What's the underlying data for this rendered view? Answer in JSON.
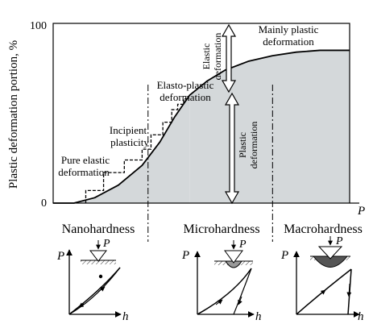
{
  "chart_data": {
    "type": "area",
    "ylabel": "Plastic deformation portion, %",
    "xlabel": "P",
    "y_ticks": [
      "100",
      "0"
    ],
    "ylim": [
      0,
      100
    ],
    "grid": false,
    "curve": {
      "points": [
        [
          0.0,
          0
        ],
        [
          0.07,
          0
        ],
        [
          0.14,
          3
        ],
        [
          0.22,
          10
        ],
        [
          0.3,
          21
        ],
        [
          0.36,
          34
        ],
        [
          0.41,
          48
        ],
        [
          0.46,
          60
        ],
        [
          0.52,
          68
        ],
        [
          0.58,
          74
        ],
        [
          0.66,
          79
        ],
        [
          0.74,
          82
        ],
        [
          0.82,
          84
        ],
        [
          0.9,
          85
        ],
        [
          1.0,
          85
        ]
      ]
    },
    "staircase": {
      "points": [
        [
          0.11,
          0
        ],
        [
          0.11,
          7
        ],
        [
          0.17,
          7
        ],
        [
          0.17,
          17
        ],
        [
          0.24,
          17
        ],
        [
          0.24,
          24
        ],
        [
          0.3,
          24
        ],
        [
          0.3,
          30
        ],
        [
          0.33,
          30
        ],
        [
          0.33,
          38
        ],
        [
          0.37,
          38
        ],
        [
          0.37,
          45
        ],
        [
          0.4,
          45
        ],
        [
          0.4,
          52
        ],
        [
          0.42,
          52
        ],
        [
          0.42,
          55
        ],
        [
          0.44,
          55
        ],
        [
          0.44,
          58
        ],
        [
          0.46,
          58
        ]
      ]
    },
    "divisions_x": [
      0.32,
      0.74
    ],
    "transition_x": 0.46,
    "transition_y": 60
  },
  "annotations": {
    "pure_elastic": [
      "Pure elastic",
      "deformation"
    ],
    "incipient": [
      "Incipient",
      "plasticity"
    ],
    "elasto_plastic": [
      "Elasto-plastic",
      "deformation"
    ],
    "mainly_plastic": [
      "Mainly plastic",
      "deformation"
    ],
    "elastic_vertical": [
      "Elastic",
      "deformation"
    ],
    "plastic_vertical": [
      "Plastic",
      "deformation"
    ]
  },
  "regions": [
    "Nanohardness",
    "Microhardness",
    "Macrohardness"
  ],
  "insets": {
    "p_label": "P",
    "h_label": "h",
    "load_label": "P"
  }
}
